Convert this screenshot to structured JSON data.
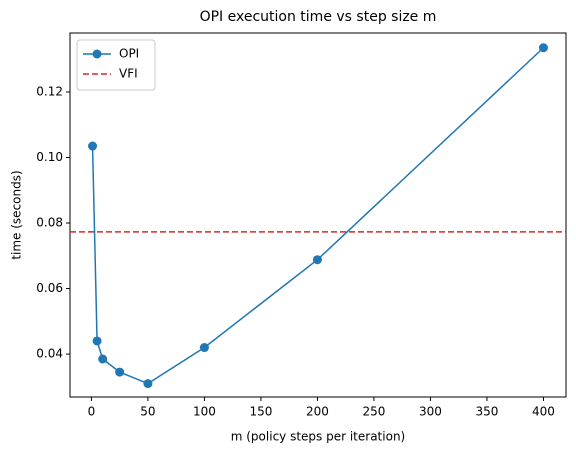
{
  "chart_data": {
    "type": "line",
    "title": "OPI execution time vs step size m",
    "xlabel": "m (policy steps per iteration)",
    "ylabel": "time (seconds)",
    "x": [
      1,
      5,
      10,
      25,
      50,
      100,
      200,
      400
    ],
    "series": [
      {
        "name": "OPI",
        "color": "#1f77b4",
        "values": [
          0.1035,
          0.044,
          0.0385,
          0.0345,
          0.031,
          0.042,
          0.0688,
          0.1335
        ]
      }
    ],
    "hlines": [
      {
        "name": "VFI",
        "color": "#d62728",
        "value": 0.0773
      }
    ],
    "xlim": [
      -18.95,
      419.95
    ],
    "xticks": [
      0,
      50,
      100,
      150,
      200,
      250,
      300,
      350,
      400
    ],
    "ylim": [
      0.0269,
      0.138
    ],
    "yticks": [
      0.04,
      0.06,
      0.08,
      {
        "value": 0.1,
        "label": "0.10"
      },
      0.12
    ],
    "legend": "upper left"
  }
}
